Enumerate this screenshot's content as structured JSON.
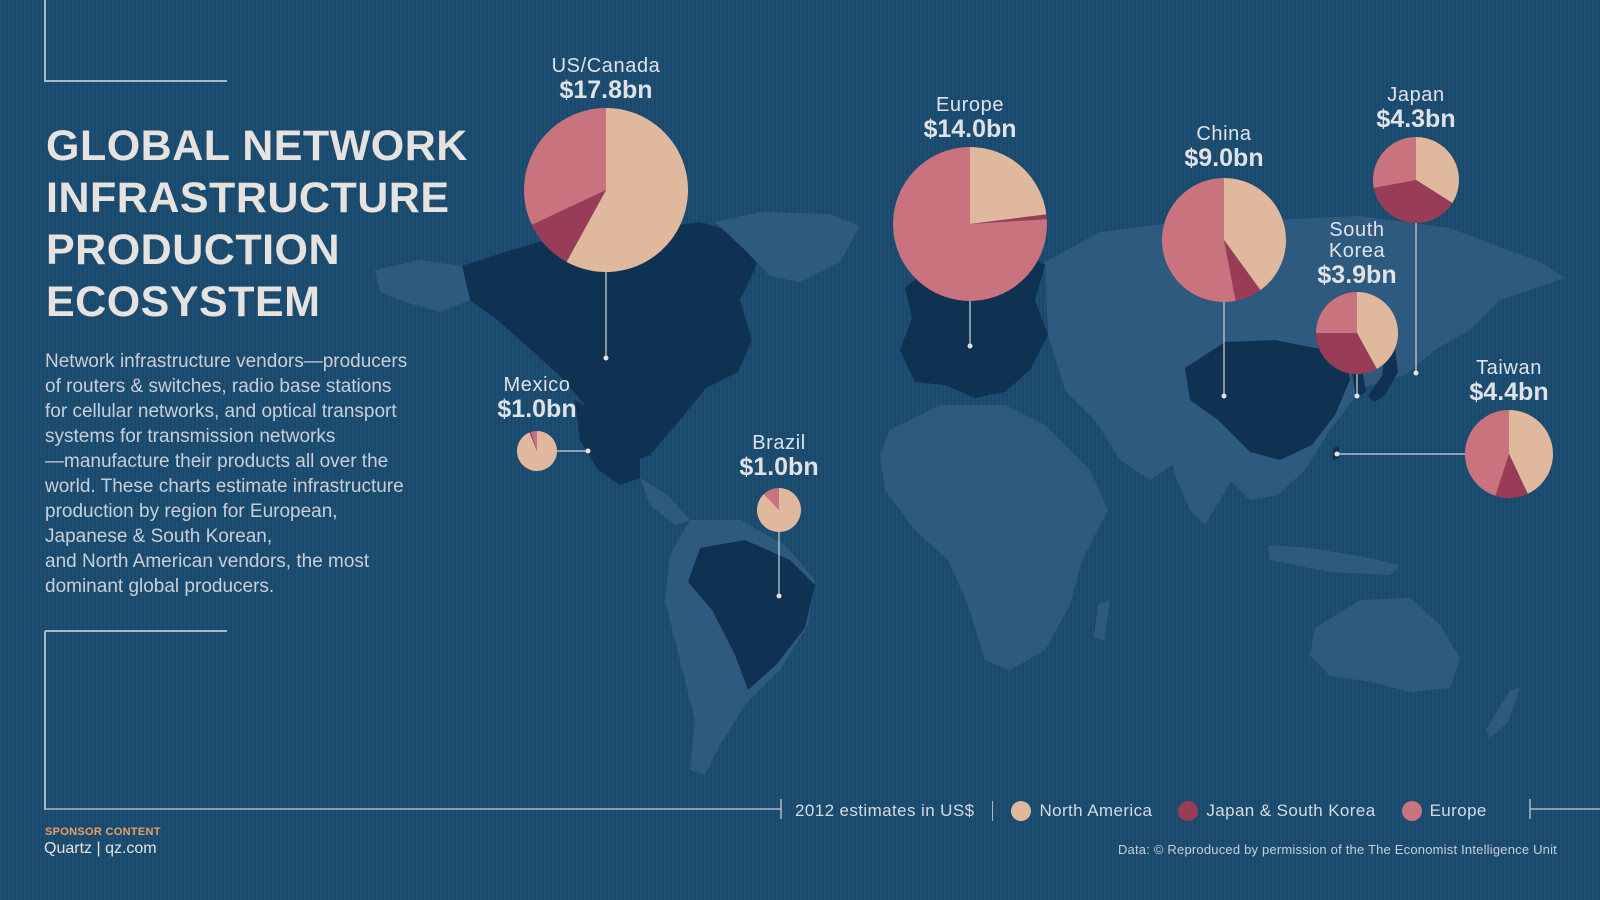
{
  "header": {
    "title_lines": [
      "GLOBAL NETWORK",
      "INFRASTRUCTURE",
      "PRODUCTION",
      "ECOSYSTEM"
    ],
    "description_lines": [
      "Network infrastructure vendors—producers",
      "of routers & switches, radio base stations",
      "for cellular networks, and optical transport",
      "systems for transmission networks",
      "—manufacture their products all over the",
      "world. These charts estimate infrastructure",
      "production by region for European,",
      "Japanese & South Korean,",
      "and North American vendors, the most",
      "dominant global producers."
    ]
  },
  "footer": {
    "sponsor": "SPONSOR CONTENT",
    "brand": "Quartz | qz.com",
    "credit": "Data: © Reproduced by permission of the The Economist Intelligence Unit"
  },
  "legend": {
    "note": "2012 estimates in US$",
    "items": [
      {
        "label": "North America",
        "color": "#e0b89d"
      },
      {
        "label": "Japan & South Korea",
        "color": "#983c58"
      },
      {
        "label": "Europe",
        "color": "#c8737d"
      }
    ]
  },
  "colors": {
    "background": "#1b4a70",
    "land": "#2f5a80",
    "highlight_land": "#0f3252",
    "north_america": "#e0b89d",
    "japan_korea": "#983c58",
    "europe": "#c8737d"
  },
  "chart_data": {
    "type": "pie",
    "unit": "US$ billions",
    "series_order": [
      "North America",
      "Japan & South Korea",
      "Europe"
    ],
    "regions": [
      {
        "name": "US/Canada",
        "value_label": "$17.8bn",
        "value": 17.8,
        "shares": [
          0.58,
          0.1,
          0.32
        ]
      },
      {
        "name": "Europe",
        "value_label": "$14.0bn",
        "value": 14.0,
        "shares": [
          0.23,
          0.01,
          0.76
        ]
      },
      {
        "name": "China",
        "value_label": "$9.0bn",
        "value": 9.0,
        "shares": [
          0.4,
          0.07,
          0.53
        ]
      },
      {
        "name": "Japan",
        "value_label": "$4.3bn",
        "value": 4.3,
        "shares": [
          0.34,
          0.38,
          0.28
        ]
      },
      {
        "name": "South Korea",
        "value_label": "$3.9bn",
        "value": 3.9,
        "shares": [
          0.42,
          0.33,
          0.25
        ]
      },
      {
        "name": "Taiwan",
        "value_label": "$4.4bn",
        "value": 4.4,
        "shares": [
          0.43,
          0.12,
          0.45
        ]
      },
      {
        "name": "Mexico",
        "value_label": "$1.0bn",
        "value": 1.0,
        "shares": [
          0.94,
          0.01,
          0.05
        ]
      },
      {
        "name": "Brazil",
        "value_label": "$1.0bn",
        "value": 1.0,
        "shares": [
          0.88,
          0.0,
          0.12
        ]
      }
    ]
  }
}
